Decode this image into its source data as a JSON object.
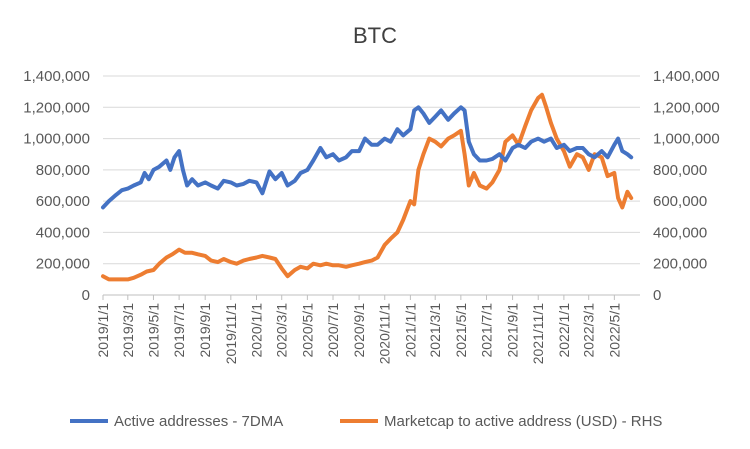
{
  "chart_data": {
    "type": "line",
    "title": "BTC",
    "x_ticks": [
      "2019/1/1",
      "2019/3/1",
      "2019/5/1",
      "2019/7/1",
      "2019/9/1",
      "2019/11/1",
      "2020/1/1",
      "2020/3/1",
      "2020/5/1",
      "2020/7/1",
      "2020/9/1",
      "2020/11/1",
      "2021/1/1",
      "2021/3/1",
      "2021/5/1",
      "2021/7/1",
      "2021/9/1",
      "2021/11/1",
      "2022/1/1",
      "2022/3/1",
      "2022/5/1"
    ],
    "y_ticks": [
      "0",
      "200,000",
      "400,000",
      "600,000",
      "800,000",
      "1,000,000",
      "1,200,000",
      "1,400,000"
    ],
    "y2_ticks": [
      "0",
      "200,000",
      "400,000",
      "600,000",
      "800,000",
      "1,000,000",
      "1,200,000",
      "1,400,000"
    ],
    "ylim": [
      0,
      1400000
    ],
    "y2lim": [
      0,
      1400000
    ],
    "grid": true,
    "legend_position": "bottom",
    "series": [
      {
        "name": "Active addresses - 7DMA",
        "color": "#4472C4",
        "axis": "left",
        "x": [
          "2019/1/1",
          "2019/1/15",
          "2019/2/1",
          "2019/2/15",
          "2019/3/1",
          "2019/3/15",
          "2019/4/1",
          "2019/4/10",
          "2019/4/20",
          "2019/5/1",
          "2019/5/15",
          "2019/6/1",
          "2019/6/10",
          "2019/6/20",
          "2019/7/1",
          "2019/7/10",
          "2019/7/20",
          "2019/8/1",
          "2019/8/15",
          "2019/9/1",
          "2019/9/15",
          "2019/10/1",
          "2019/10/15",
          "2019/11/1",
          "2019/11/15",
          "2019/12/1",
          "2019/12/15",
          "2020/1/1",
          "2020/1/15",
          "2020/2/1",
          "2020/2/15",
          "2020/3/1",
          "2020/3/15",
          "2020/4/1",
          "2020/4/15",
          "2020/5/1",
          "2020/5/15",
          "2020/6/1",
          "2020/6/15",
          "2020/7/1",
          "2020/7/15",
          "2020/8/1",
          "2020/8/15",
          "2020/9/1",
          "2020/9/15",
          "2020/10/1",
          "2020/10/15",
          "2020/11/1",
          "2020/11/15",
          "2020/12/1",
          "2020/12/15",
          "2021/1/1",
          "2021/1/10",
          "2021/1/20",
          "2021/2/1",
          "2021/2/15",
          "2021/3/1",
          "2021/3/15",
          "2021/4/1",
          "2021/4/15",
          "2021/5/1",
          "2021/5/10",
          "2021/5/20",
          "2021/6/1",
          "2021/6/15",
          "2021/7/1",
          "2021/7/15",
          "2021/8/1",
          "2021/8/15",
          "2021/9/1",
          "2021/9/15",
          "2021/10/1",
          "2021/10/15",
          "2021/11/1",
          "2021/11/15",
          "2021/12/1",
          "2021/12/15",
          "2022/1/1",
          "2022/1/15",
          "2022/2/1",
          "2022/2/15",
          "2022/3/1",
          "2022/3/15",
          "2022/4/1",
          "2022/4/15",
          "2022/5/1",
          "2022/5/10",
          "2022/5/20",
          "2022/6/1",
          "2022/6/10"
        ],
        "y": [
          560000,
          600000,
          640000,
          670000,
          680000,
          700000,
          720000,
          780000,
          740000,
          800000,
          820000,
          860000,
          800000,
          880000,
          920000,
          800000,
          700000,
          740000,
          700000,
          720000,
          700000,
          680000,
          730000,
          720000,
          700000,
          710000,
          730000,
          720000,
          650000,
          790000,
          740000,
          780000,
          700000,
          730000,
          780000,
          800000,
          860000,
          940000,
          880000,
          900000,
          860000,
          880000,
          920000,
          920000,
          1000000,
          960000,
          960000,
          1000000,
          980000,
          1060000,
          1020000,
          1060000,
          1180000,
          1200000,
          1160000,
          1100000,
          1140000,
          1180000,
          1120000,
          1160000,
          1200000,
          1180000,
          980000,
          900000,
          860000,
          860000,
          870000,
          900000,
          860000,
          940000,
          960000,
          940000,
          980000,
          1000000,
          980000,
          1000000,
          940000,
          960000,
          920000,
          940000,
          940000,
          900000,
          880000,
          920000,
          880000,
          960000,
          1000000,
          920000,
          900000,
          880000
        ]
      },
      {
        "name": "Marketcap to active address (USD) - RHS",
        "color": "#ED7D31",
        "axis": "right",
        "x": [
          "2019/1/1",
          "2019/1/15",
          "2019/2/1",
          "2019/2/15",
          "2019/3/1",
          "2019/3/15",
          "2019/4/1",
          "2019/4/15",
          "2019/5/1",
          "2019/5/15",
          "2019/6/1",
          "2019/6/15",
          "2019/7/1",
          "2019/7/15",
          "2019/8/1",
          "2019/8/15",
          "2019/9/1",
          "2019/9/15",
          "2019/10/1",
          "2019/10/15",
          "2019/11/1",
          "2019/11/15",
          "2019/12/1",
          "2019/12/15",
          "2020/1/1",
          "2020/1/15",
          "2020/2/1",
          "2020/2/15",
          "2020/3/1",
          "2020/3/15",
          "2020/4/1",
          "2020/4/15",
          "2020/5/1",
          "2020/5/15",
          "2020/6/1",
          "2020/6/15",
          "2020/7/1",
          "2020/7/15",
          "2020/8/1",
          "2020/8/15",
          "2020/9/1",
          "2020/9/15",
          "2020/10/1",
          "2020/10/15",
          "2020/11/1",
          "2020/11/15",
          "2020/12/1",
          "2020/12/15",
          "2021/1/1",
          "2021/1/10",
          "2021/1/20",
          "2021/2/1",
          "2021/2/15",
          "2021/3/1",
          "2021/3/15",
          "2021/4/1",
          "2021/4/15",
          "2021/5/1",
          "2021/5/10",
          "2021/5/20",
          "2021/6/1",
          "2021/6/15",
          "2021/7/1",
          "2021/7/15",
          "2021/8/1",
          "2021/8/15",
          "2021/9/1",
          "2021/9/15",
          "2021/10/1",
          "2021/10/15",
          "2021/11/1",
          "2021/11/10",
          "2021/11/20",
          "2021/12/1",
          "2021/12/15",
          "2022/1/1",
          "2022/1/15",
          "2022/2/1",
          "2022/2/15",
          "2022/3/1",
          "2022/3/15",
          "2022/4/1",
          "2022/4/15",
          "2022/5/1",
          "2022/5/10",
          "2022/5/20",
          "2022/6/1",
          "2022/6/10"
        ],
        "y": [
          120000,
          100000,
          100000,
          100000,
          100000,
          110000,
          130000,
          150000,
          160000,
          200000,
          240000,
          260000,
          290000,
          270000,
          270000,
          260000,
          250000,
          220000,
          210000,
          230000,
          210000,
          200000,
          220000,
          230000,
          240000,
          250000,
          240000,
          230000,
          170000,
          120000,
          160000,
          180000,
          170000,
          200000,
          190000,
          200000,
          190000,
          190000,
          180000,
          190000,
          200000,
          210000,
          220000,
          240000,
          320000,
          360000,
          400000,
          480000,
          600000,
          580000,
          800000,
          900000,
          1000000,
          980000,
          950000,
          1000000,
          1020000,
          1050000,
          900000,
          700000,
          780000,
          700000,
          680000,
          720000,
          800000,
          980000,
          1020000,
          960000,
          1080000,
          1180000,
          1260000,
          1280000,
          1200000,
          1100000,
          1000000,
          920000,
          820000,
          900000,
          880000,
          800000,
          900000,
          880000,
          760000,
          780000,
          620000,
          560000,
          660000,
          620000
        ]
      }
    ]
  }
}
